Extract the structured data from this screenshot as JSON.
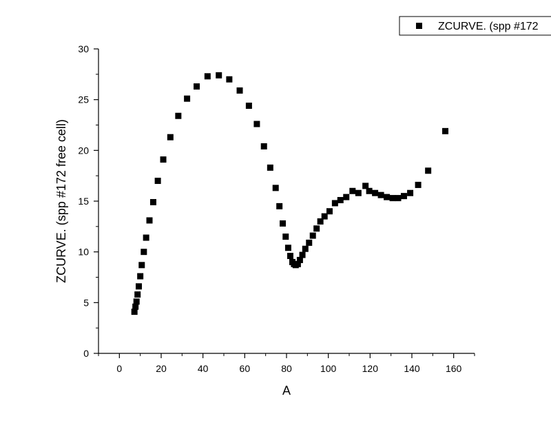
{
  "chart_data": {
    "type": "scatter",
    "xlabel": "A",
    "ylabel": "ZCURVE. (spp #172 free cell)",
    "xlim": [
      -10,
      170
    ],
    "ylim": [
      0,
      30
    ],
    "xticks": [
      0,
      20,
      40,
      60,
      80,
      100,
      120,
      140,
      160
    ],
    "yticks": [
      0,
      5,
      10,
      15,
      20,
      25,
      30
    ],
    "grid": false,
    "legend_position": "top-right",
    "marker": "square",
    "series": [
      {
        "name": "ZCURVE. (spp #172",
        "color": "#000000",
        "points": [
          [
            7.2,
            4.1
          ],
          [
            7.7,
            4.6
          ],
          [
            8.2,
            5.1
          ],
          [
            8.7,
            5.8
          ],
          [
            9.3,
            6.6
          ],
          [
            10.0,
            7.6
          ],
          [
            10.7,
            8.7
          ],
          [
            11.7,
            10.0
          ],
          [
            12.8,
            11.4
          ],
          [
            14.4,
            13.1
          ],
          [
            16.2,
            14.9
          ],
          [
            18.4,
            17.0
          ],
          [
            21.0,
            19.1
          ],
          [
            24.4,
            21.3
          ],
          [
            28.2,
            23.4
          ],
          [
            32.4,
            25.1
          ],
          [
            37.0,
            26.3
          ],
          [
            42.2,
            27.3
          ],
          [
            47.6,
            27.4
          ],
          [
            52.6,
            27.0
          ],
          [
            57.6,
            25.9
          ],
          [
            62.0,
            24.4
          ],
          [
            65.8,
            22.6
          ],
          [
            69.2,
            20.4
          ],
          [
            72.2,
            18.3
          ],
          [
            74.8,
            16.3
          ],
          [
            76.6,
            14.5
          ],
          [
            78.2,
            12.8
          ],
          [
            79.6,
            11.5
          ],
          [
            80.8,
            10.4
          ],
          [
            81.8,
            9.6
          ],
          [
            82.8,
            9.0
          ],
          [
            83.6,
            8.8
          ],
          [
            84.4,
            8.7
          ],
          [
            85.4,
            8.8
          ],
          [
            86.4,
            9.2
          ],
          [
            87.6,
            9.7
          ],
          [
            89.0,
            10.3
          ],
          [
            90.8,
            10.9
          ],
          [
            92.6,
            11.6
          ],
          [
            94.4,
            12.3
          ],
          [
            96.2,
            13.0
          ],
          [
            98.2,
            13.5
          ],
          [
            100.6,
            14.0
          ],
          [
            103.2,
            14.8
          ],
          [
            105.8,
            15.1
          ],
          [
            108.6,
            15.4
          ],
          [
            111.6,
            16.0
          ],
          [
            114.4,
            15.8
          ],
          [
            117.8,
            16.5
          ],
          [
            119.6,
            16.0
          ],
          [
            122.4,
            15.8
          ],
          [
            125.2,
            15.6
          ],
          [
            128.0,
            15.4
          ],
          [
            130.8,
            15.3
          ],
          [
            133.4,
            15.3
          ],
          [
            136.2,
            15.5
          ],
          [
            139.2,
            15.8
          ],
          [
            143.0,
            16.6
          ],
          [
            147.8,
            18.0
          ],
          [
            156.0,
            21.9
          ]
        ]
      }
    ]
  }
}
